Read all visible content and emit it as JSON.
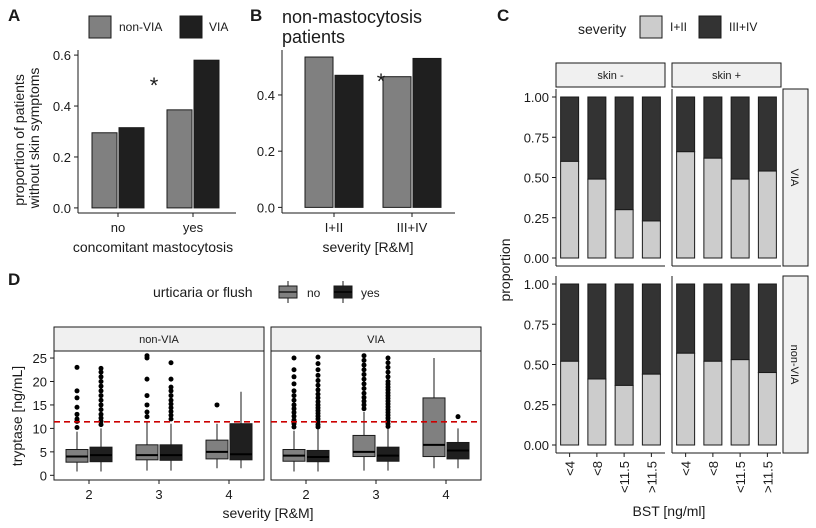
{
  "colors": {
    "nonVIA": "#808080",
    "VIA": "#1f1f1f",
    "sev_low": "#cccccc",
    "sev_high": "#333333",
    "urt_no": "#808080",
    "urt_yes": "#1f1f1f",
    "threshold": "#cc0000",
    "strip_fill": "#f0f0f0"
  },
  "chart_data": [
    {
      "id": "A",
      "letter": "A",
      "type": "bar",
      "title": "",
      "legend": {
        "title": "",
        "entries": [
          "non-VIA",
          "VIA"
        ],
        "placement": "top"
      },
      "categories": [
        "no",
        "yes"
      ],
      "series": [
        {
          "name": "non-VIA",
          "values": [
            0.295,
            0.385
          ]
        },
        {
          "name": "VIA",
          "values": [
            0.315,
            0.58
          ]
        }
      ],
      "xlabel": "concomitant mastocytosis",
      "ylabel": "proportion of patients\nwithout skin symptoms",
      "ylim": [
        -0.02,
        0.62
      ],
      "yticks": [
        0.0,
        0.2,
        0.4,
        0.6
      ],
      "ytick_labels": [
        "0.0",
        "0.2",
        "0.4",
        "0.6"
      ],
      "annotations": [
        "*"
      ]
    },
    {
      "id": "B",
      "letter": "B",
      "type": "bar",
      "title": "non-mastocytosis\npatients",
      "categories": [
        "I+II",
        "III+IV"
      ],
      "series": [
        {
          "name": "non-VIA",
          "values": [
            0.535,
            0.465
          ]
        },
        {
          "name": "VIA",
          "values": [
            0.47,
            0.53
          ]
        }
      ],
      "xlabel": "severity [R&M]",
      "ylabel": "",
      "ylim": [
        -0.02,
        0.56
      ],
      "yticks": [
        0.0,
        0.2,
        0.4
      ],
      "ytick_labels": [
        "0.0",
        "0.2",
        "0.4"
      ],
      "annotations": [
        "*"
      ]
    },
    {
      "id": "C",
      "letter": "C",
      "type": "bar",
      "title": "",
      "legend": {
        "title": "severity",
        "entries": [
          "I+II",
          "III+IV"
        ],
        "placement": "top"
      },
      "columns": [
        "skin -",
        "skin +"
      ],
      "rows": [
        "VIA",
        "non-VIA"
      ],
      "categories": [
        "<4",
        "<8",
        "<11.5",
        ">11.5"
      ],
      "stacked_low_fraction": {
        "VIA": {
          "skin -": [
            0.6,
            0.49,
            0.3,
            0.23
          ],
          "skin +": [
            0.66,
            0.62,
            0.49,
            0.54
          ]
        },
        "non-VIA": {
          "skin -": [
            0.52,
            0.41,
            0.37,
            0.44
          ],
          "skin +": [
            0.57,
            0.52,
            0.53,
            0.45
          ]
        }
      },
      "xlabel": "BST [ng/ml]",
      "ylabel": "proportion",
      "ylim": [
        0,
        1
      ],
      "yticks": [
        0.0,
        0.25,
        0.5,
        0.75,
        1.0
      ],
      "ytick_labels": [
        "0.00",
        "0.25",
        "0.50",
        "0.75",
        "1.00"
      ]
    },
    {
      "id": "D",
      "letter": "D",
      "type": "box",
      "title": "",
      "legend": {
        "title": "urticaria or flush",
        "entries": [
          "no",
          "yes"
        ],
        "placement": "top"
      },
      "facets": [
        "non-VIA",
        "VIA"
      ],
      "categories": [
        "2",
        "3",
        "4"
      ],
      "xlabel": "severity [R&M]",
      "ylabel": "tryptase [ng/mL]",
      "ylim": [
        -1,
        26.5
      ],
      "yticks": [
        0,
        5,
        10,
        15,
        20,
        25
      ],
      "ytick_labels": [
        "0",
        "5",
        "10",
        "15",
        "20",
        "25"
      ],
      "reference_line_y": 11.4,
      "boxes": {
        "non-VIA": {
          "2": {
            "no": {
              "low": 0.8,
              "q1": 2.8,
              "median": 4.0,
              "q3": 5.5,
              "high": 9.3,
              "outliers": [
                10.2,
                11.5,
                12.0,
                13.0,
                14.5,
                16.5,
                18.0,
                23.0
              ]
            },
            "yes": {
              "low": 0.8,
              "q1": 2.9,
              "median": 4.3,
              "q3": 6.0,
              "high": 10.0,
              "outliers": [
                10.8,
                11.5,
                12.2,
                13.0,
                14.0,
                15.0,
                16.0,
                17.0,
                18.0,
                19.0,
                20.0,
                21.0,
                22.0,
                22.8
              ]
            }
          },
          "3": {
            "no": {
              "low": 1.0,
              "q1": 3.3,
              "median": 4.3,
              "q3": 6.5,
              "high": 11.5,
              "outliers": [
                12.5,
                13.5,
                15.0,
                17.0,
                20.5,
                25.0,
                25.5
              ]
            },
            "yes": {
              "low": 1.0,
              "q1": 3.2,
              "median": 4.3,
              "q3": 6.5,
              "high": 11.0,
              "outliers": [
                12.0,
                12.8,
                13.6,
                14.4,
                15.2,
                16.0,
                17.0,
                18.0,
                18.8,
                20.5,
                24.0
              ]
            }
          },
          "4": {
            "no": {
              "low": 1.5,
              "q1": 3.5,
              "median": 5.0,
              "q3": 7.5,
              "high": 11.0,
              "outliers": [
                15.0
              ]
            },
            "yes": {
              "low": 1.5,
              "q1": 3.3,
              "median": 4.5,
              "q3": 11.0,
              "high": 17.8,
              "outliers": []
            }
          }
        },
        "VIA": {
          "2": {
            "no": {
              "low": 0.8,
              "q1": 3.0,
              "median": 4.2,
              "q3": 5.5,
              "high": 9.5,
              "outliers": [
                10.3,
                11.0,
                11.8,
                12.6,
                13.4,
                14.2,
                15.0,
                16.0,
                17.0,
                18.0,
                19.5,
                21.0,
                22.5,
                25.0
              ]
            },
            "yes": {
              "low": 0.8,
              "q1": 2.9,
              "median": 3.9,
              "q3": 5.3,
              "high": 9.8,
              "outliers": [
                10.3,
                10.8,
                11.4,
                12.0,
                12.6,
                13.2,
                13.8,
                14.4,
                15.0,
                15.7,
                16.5,
                17.3,
                18.2,
                19.2,
                20.2,
                21.3,
                22.5,
                23.8,
                25.2
              ]
            }
          },
          "3": {
            "no": {
              "low": 1.0,
              "q1": 4.0,
              "median": 5.0,
              "q3": 8.5,
              "high": 13.5,
              "outliers": [
                14.2,
                15.0,
                15.8,
                16.6,
                17.5,
                18.5,
                19.5,
                20.5,
                21.5,
                22.5,
                23.5,
                24.5,
                25.5
              ]
            },
            "yes": {
              "low": 1.0,
              "q1": 3.0,
              "median": 4.2,
              "q3": 6.0,
              "high": 10.0,
              "outliers": [
                10.4,
                11.0,
                11.6,
                12.2,
                12.8,
                13.4,
                14.0,
                14.6,
                15.2,
                15.8,
                16.4,
                17.0,
                17.6,
                18.2,
                18.8,
                19.4,
                20.0,
                21.0,
                22.0,
                23.0,
                24.0,
                25.0
              ]
            }
          },
          "4": {
            "no": {
              "low": 1.5,
              "q1": 4.0,
              "median": 6.5,
              "q3": 16.5,
              "high": 25.0,
              "outliers": []
            },
            "yes": {
              "low": 1.5,
              "q1": 3.5,
              "median": 5.3,
              "q3": 7.0,
              "high": 10.0,
              "outliers": [
                12.5
              ]
            }
          }
        }
      }
    }
  ]
}
